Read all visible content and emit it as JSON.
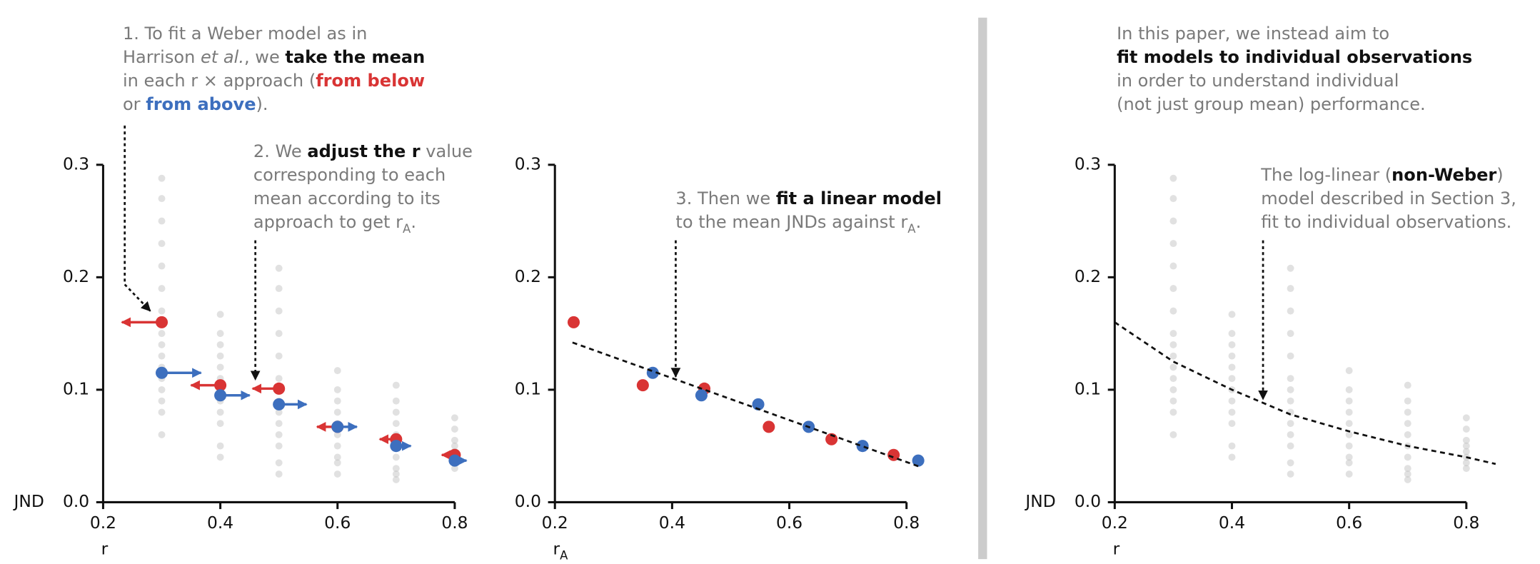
{
  "chart_data": [
    {
      "type": "scatter",
      "xlim": [
        0.2,
        0.8
      ],
      "ylim": [
        0,
        0.3
      ],
      "xticks": [
        0.2,
        0.4,
        0.6,
        0.8
      ],
      "yticks": [
        {
          "value": 0,
          "label": "0.0"
        },
        0.1,
        0.2,
        0.3
      ],
      "xlabel": "r",
      "ylabel": "JND",
      "adjust_arrows": true,
      "series": [
        {
          "color": "#bdbdbd",
          "style": "points",
          "x": [
            0.3,
            0.3,
            0.3,
            0.3,
            0.3,
            0.3,
            0.3,
            0.3,
            0.3,
            0.3,
            0.3,
            0.3,
            0.3,
            0.3,
            0.3,
            0.3,
            0.4,
            0.4,
            0.4,
            0.4,
            0.4,
            0.4,
            0.4,
            0.4,
            0.4,
            0.4,
            0.4,
            0.4,
            0.5,
            0.5,
            0.5,
            0.5,
            0.5,
            0.5,
            0.5,
            0.5,
            0.5,
            0.5,
            0.5,
            0.5,
            0.5,
            0.5,
            0.6,
            0.6,
            0.6,
            0.6,
            0.6,
            0.6,
            0.6,
            0.6,
            0.6,
            0.6,
            0.7,
            0.7,
            0.7,
            0.7,
            0.7,
            0.7,
            0.7,
            0.7,
            0.7,
            0.7,
            0.8,
            0.8,
            0.8,
            0.8,
            0.8,
            0.8,
            0.8,
            0.8
          ],
          "values": [
            0.288,
            0.27,
            0.25,
            0.23,
            0.21,
            0.19,
            0.17,
            0.15,
            0.14,
            0.13,
            0.12,
            0.11,
            0.1,
            0.09,
            0.08,
            0.06,
            0.167,
            0.15,
            0.14,
            0.13,
            0.12,
            0.11,
            0.1,
            0.09,
            0.08,
            0.07,
            0.05,
            0.04,
            0.208,
            0.19,
            0.17,
            0.15,
            0.13,
            0.11,
            0.1,
            0.09,
            0.08,
            0.07,
            0.06,
            0.05,
            0.035,
            0.025,
            0.117,
            0.1,
            0.09,
            0.08,
            0.07,
            0.06,
            0.05,
            0.04,
            0.035,
            0.025,
            0.104,
            0.09,
            0.08,
            0.07,
            0.06,
            0.05,
            0.04,
            0.03,
            0.025,
            0.02,
            0.075,
            0.065,
            0.055,
            0.05,
            0.045,
            0.04,
            0.035,
            0.03
          ]
        },
        {
          "color": "#d93434",
          "style": "means",
          "x": [
            0.3,
            0.4,
            0.5,
            0.6,
            0.7,
            0.8
          ],
          "values": [
            0.16,
            0.104,
            0.101,
            0.067,
            0.056,
            0.042
          ]
        },
        {
          "color": "#3d6fbe",
          "style": "means",
          "x": [
            0.3,
            0.4,
            0.5,
            0.6,
            0.7,
            0.8
          ],
          "values": [
            0.115,
            0.095,
            0.087,
            0.067,
            0.05,
            0.037
          ]
        }
      ],
      "annotations": [
        {
          "lines": [
            [
              {
                "text": "1. To fit a Weber model as in"
              }
            ],
            [
              {
                "text": "Harrison "
              },
              {
                "text": "et al.",
                "style": "italic"
              },
              {
                "text": ", we "
              },
              {
                "text": "take the mean",
                "style": "bold"
              }
            ],
            [
              {
                "text": "in each r × approach ("
              },
              {
                "text": "from below",
                "style": "red"
              }
            ],
            [
              {
                "text": "or "
              },
              {
                "text": "from above",
                "style": "blue"
              },
              {
                "text": ")."
              }
            ]
          ]
        },
        {
          "lines": [
            [
              {
                "text": "2. We "
              },
              {
                "text": "adjust the r",
                "style": "bold"
              },
              {
                "text": " value"
              }
            ],
            [
              {
                "text": "corresponding to each"
              }
            ],
            [
              {
                "text": "mean according to its"
              }
            ],
            [
              {
                "text": "approach to get r"
              },
              {
                "text": "A",
                "style": "sub"
              },
              {
                "text": "."
              }
            ]
          ]
        }
      ]
    },
    {
      "type": "scatter",
      "xlim": [
        0.2,
        0.8
      ],
      "ylim": [
        0,
        0.3
      ],
      "xticks": [
        0.2,
        0.4,
        0.6,
        0.8
      ],
      "yticks": [
        {
          "value": 0,
          "label": "0.0"
        },
        0.1,
        0.2,
        0.3
      ],
      "xlabel": "r",
      "xlabel_sub": "A",
      "series": [
        {
          "color": "#d93434",
          "style": "means",
          "x": [
            0.232,
            0.35,
            0.455,
            0.565,
            0.672,
            0.778
          ],
          "values": [
            0.16,
            0.104,
            0.101,
            0.067,
            0.056,
            0.042
          ]
        },
        {
          "color": "#3d6fbe",
          "style": "means",
          "x": [
            0.367,
            0.45,
            0.547,
            0.633,
            0.725,
            0.82
          ],
          "values": [
            0.115,
            0.095,
            0.087,
            0.067,
            0.05,
            0.037
          ]
        },
        {
          "color": "#111111",
          "style": "dashed-line",
          "x": [
            0.23,
            0.82
          ],
          "values": [
            0.142,
            0.032
          ]
        }
      ],
      "annotations": [
        {
          "lines": [
            [
              {
                "text": "3. Then we "
              },
              {
                "text": "fit a linear model",
                "style": "bold"
              }
            ],
            [
              {
                "text": "to the mean JNDs against r"
              },
              {
                "text": "A",
                "style": "sub"
              },
              {
                "text": "."
              }
            ]
          ]
        }
      ]
    },
    {
      "type": "scatter",
      "xlim": [
        0.2,
        0.8
      ],
      "ylim": [
        0,
        0.3
      ],
      "xticks": [
        0.2,
        0.4,
        0.6,
        0.8
      ],
      "yticks": [
        {
          "value": 0,
          "label": "0.0"
        },
        0.1,
        0.2,
        0.3
      ],
      "xlabel": "r",
      "ylabel": "JND",
      "series": [
        {
          "color": "#bdbdbd",
          "style": "points",
          "x": [
            0.3,
            0.3,
            0.3,
            0.3,
            0.3,
            0.3,
            0.3,
            0.3,
            0.3,
            0.3,
            0.3,
            0.3,
            0.3,
            0.3,
            0.3,
            0.3,
            0.4,
            0.4,
            0.4,
            0.4,
            0.4,
            0.4,
            0.4,
            0.4,
            0.4,
            0.4,
            0.4,
            0.4,
            0.5,
            0.5,
            0.5,
            0.5,
            0.5,
            0.5,
            0.5,
            0.5,
            0.5,
            0.5,
            0.5,
            0.5,
            0.5,
            0.5,
            0.6,
            0.6,
            0.6,
            0.6,
            0.6,
            0.6,
            0.6,
            0.6,
            0.6,
            0.6,
            0.7,
            0.7,
            0.7,
            0.7,
            0.7,
            0.7,
            0.7,
            0.7,
            0.7,
            0.7,
            0.8,
            0.8,
            0.8,
            0.8,
            0.8,
            0.8,
            0.8,
            0.8
          ],
          "values": [
            0.288,
            0.27,
            0.25,
            0.23,
            0.21,
            0.19,
            0.17,
            0.15,
            0.14,
            0.13,
            0.12,
            0.11,
            0.1,
            0.09,
            0.08,
            0.06,
            0.167,
            0.15,
            0.14,
            0.13,
            0.12,
            0.11,
            0.1,
            0.09,
            0.08,
            0.07,
            0.05,
            0.04,
            0.208,
            0.19,
            0.17,
            0.15,
            0.13,
            0.11,
            0.1,
            0.09,
            0.08,
            0.07,
            0.06,
            0.05,
            0.035,
            0.025,
            0.117,
            0.1,
            0.09,
            0.08,
            0.07,
            0.06,
            0.05,
            0.04,
            0.035,
            0.025,
            0.104,
            0.09,
            0.08,
            0.07,
            0.06,
            0.05,
            0.04,
            0.03,
            0.025,
            0.02,
            0.075,
            0.065,
            0.055,
            0.05,
            0.045,
            0.04,
            0.035,
            0.03
          ]
        },
        {
          "color": "#111111",
          "style": "dashed-line",
          "x": [
            0.2,
            0.3,
            0.4,
            0.5,
            0.6,
            0.7,
            0.8,
            0.85
          ],
          "values": [
            0.16,
            0.125,
            0.1,
            0.078,
            0.063,
            0.05,
            0.04,
            0.034
          ]
        }
      ],
      "annotations": [
        {
          "lines": [
            [
              {
                "text": "In this paper, we instead aim to"
              }
            ],
            [
              {
                "text": "fit models to individual observations",
                "style": "bold"
              }
            ],
            [
              {
                "text": "in order to understand individual"
              }
            ],
            [
              {
                "text": "(not just group mean) performance."
              }
            ]
          ]
        },
        {
          "lines": [
            [
              {
                "text": "The log-linear ("
              },
              {
                "text": "non-Weber",
                "style": "bold"
              },
              {
                "text": ")"
              }
            ],
            [
              {
                "text": "model described in Section 3,"
              }
            ],
            [
              {
                "text": "fit to individual observations."
              }
            ]
          ]
        }
      ]
    }
  ]
}
